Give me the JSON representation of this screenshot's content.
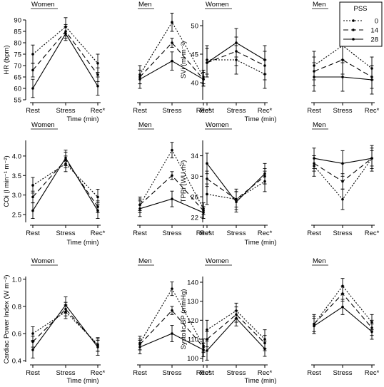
{
  "legend": {
    "title": "PSS",
    "entries": [
      "0",
      "14",
      "28"
    ]
  },
  "chart_data": [
    {
      "type": "line",
      "ylabel": "HR (bpm)",
      "xlabel": "Time (min)",
      "ylim": [
        55,
        90
      ],
      "yticks": [
        55,
        60,
        65,
        70,
        75,
        80,
        85,
        90
      ],
      "tick_labels": [
        "55",
        "60",
        "65",
        "70",
        "75",
        "80",
        "85",
        "90"
      ],
      "categories": [
        "Rest",
        "Stress",
        "Rec*"
      ],
      "group_labels": [
        "Women",
        "Men"
      ],
      "groups": [
        {
          "name": "Women",
          "series": [
            {
              "name": "0",
              "values": [
                75,
                87,
                71
              ],
              "errors": [
                4,
                4,
                4
              ]
            },
            {
              "name": "14",
              "values": [
                68,
                85,
                66
              ],
              "errors": [
                3,
                3,
                3
              ]
            },
            {
              "name": "28",
              "values": [
                60,
                84,
                61
              ],
              "errors": [
                4,
                3,
                4
              ]
            }
          ]
        },
        {
          "name": "Men",
          "series": [
            {
              "name": "0",
              "values": [
                66,
                89,
                65
              ],
              "errors": [
                4,
                4,
                3
              ]
            },
            {
              "name": "14",
              "values": [
                65,
                80,
                64
              ],
              "errors": [
                3,
                2,
                3
              ]
            },
            {
              "name": "28",
              "values": [
                64,
                72,
                64
              ],
              "errors": [
                4,
                4,
                3
              ]
            }
          ]
        }
      ]
    },
    {
      "type": "line",
      "ylabel": "SVi (ml m⁻²)",
      "xlabel": "Time (min)",
      "ylim": [
        37,
        51
      ],
      "yticks": [
        40,
        45,
        50
      ],
      "tick_labels": [
        "40",
        "45",
        "50"
      ],
      "categories": [
        "Rest",
        "Stress",
        "Rec*"
      ],
      "group_labels": [
        "Women",
        "Men"
      ],
      "groups": [
        {
          "name": "Women",
          "series": [
            {
              "name": "0",
              "values": [
                44,
                44,
                41.5
              ],
              "errors": [
                2.5,
                2.5,
                2.5
              ]
            },
            {
              "name": "14",
              "values": [
                43.5,
                45.5,
                43
              ],
              "errors": [
                2.5,
                2.5,
                2.5
              ]
            },
            {
              "name": "28",
              "values": [
                43.5,
                47,
                44
              ],
              "errors": [
                2.5,
                2.5,
                2.5
              ]
            }
          ]
        },
        {
          "name": "Men",
          "series": [
            {
              "name": "0",
              "values": [
                43,
                46.5,
                42.5
              ],
              "errors": [
                2.5,
                2.5,
                2
              ]
            },
            {
              "name": "14",
              "values": [
                42,
                44,
                41
              ],
              "errors": [
                2.5,
                2.5,
                2
              ]
            },
            {
              "name": "28",
              "values": [
                41,
                41,
                40.5
              ],
              "errors": [
                2.5,
                2.5,
                2.5
              ]
            }
          ]
        }
      ]
    },
    {
      "type": "line",
      "ylabel": "COi (l min⁻¹ m⁻²)",
      "xlabel": "Time (min)",
      "ylim": [
        2.3,
        4.4
      ],
      "yticks": [
        2.5,
        3.0,
        3.5,
        4.0
      ],
      "tick_labels": [
        "2.5",
        "3.0",
        "3.5",
        "4.0"
      ],
      "categories": [
        "Rest",
        "Stress",
        "Rec*"
      ],
      "group_labels": [
        "Women",
        "Men"
      ],
      "groups": [
        {
          "name": "Women",
          "series": [
            {
              "name": "0",
              "values": [
                3.25,
                3.8,
                2.95
              ],
              "errors": [
                0.2,
                0.2,
                0.2
              ]
            },
            {
              "name": "14",
              "values": [
                2.95,
                3.9,
                2.7
              ],
              "errors": [
                0.15,
                0.2,
                0.15
              ]
            },
            {
              "name": "28",
              "values": [
                2.6,
                3.95,
                2.6
              ],
              "errors": [
                0.2,
                0.2,
                0.2
              ]
            }
          ]
        },
        {
          "name": "Men",
          "series": [
            {
              "name": "0",
              "values": [
                2.75,
                4.15,
                2.65
              ],
              "errors": [
                0.2,
                0.2,
                0.15
              ]
            },
            {
              "name": "14",
              "values": [
                2.75,
                3.5,
                2.6
              ],
              "errors": [
                0.15,
                0.1,
                0.1
              ]
            },
            {
              "name": "28",
              "values": [
                2.65,
                2.9,
                2.55
              ],
              "errors": [
                0.2,
                0.2,
                0.15
              ]
            }
          ]
        }
      ]
    },
    {
      "type": "line",
      "ylabel": "TPRi (WU.m²)",
      "xlabel": "Time (min)",
      "ylim": [
        21,
        37
      ],
      "yticks": [
        22,
        26,
        30,
        34
      ],
      "tick_labels": [
        "22",
        "26",
        "30",
        "34"
      ],
      "categories": [
        "Rest",
        "Stress",
        "Rec*"
      ],
      "group_labels": [
        "Women",
        "Men"
      ],
      "groups": [
        {
          "name": "Women",
          "series": [
            {
              "name": "0",
              "values": [
                26.5,
                25.5,
                29
              ],
              "errors": [
                2,
                2,
                2
              ]
            },
            {
              "name": "14",
              "values": [
                29.5,
                25.5,
                30
              ],
              "errors": [
                1.5,
                1.5,
                1.5
              ]
            },
            {
              "name": "28",
              "values": [
                32.5,
                25,
                30.5
              ],
              "errors": [
                2,
                2,
                2
              ]
            }
          ]
        },
        {
          "name": "Men",
          "series": [
            {
              "name": "0",
              "values": [
                32,
                25.5,
                33.5
              ],
              "errors": [
                2,
                2,
                2
              ]
            },
            {
              "name": "14",
              "values": [
                32.5,
                29,
                33.5
              ],
              "errors": [
                1.5,
                1.5,
                1.5
              ]
            },
            {
              "name": "28",
              "values": [
                33.5,
                32.5,
                33.5
              ],
              "errors": [
                2,
                2.5,
                2.5
              ]
            }
          ]
        }
      ]
    },
    {
      "type": "line",
      "ylabel": "Cardiac Power Index (W m⁻²)",
      "xlabel": "Time (min)",
      "ylim": [
        0.39,
        1.02
      ],
      "yticks": [
        0.4,
        0.6,
        0.8,
        1.0
      ],
      "tick_labels": [
        "0.4",
        "0.6",
        "0.8",
        "1.0"
      ],
      "categories": [
        "Rest",
        "Stress",
        "Rec*"
      ],
      "group_labels": [
        "Women",
        "Men"
      ],
      "groups": [
        {
          "name": "Women",
          "series": [
            {
              "name": "0",
              "values": [
                0.6,
                0.76,
                0.52
              ],
              "errors": [
                0.05,
                0.05,
                0.05
              ]
            },
            {
              "name": "14",
              "values": [
                0.54,
                0.78,
                0.51
              ],
              "errors": [
                0.04,
                0.05,
                0.04
              ]
            },
            {
              "name": "28",
              "values": [
                0.48,
                0.81,
                0.5
              ],
              "errors": [
                0.06,
                0.06,
                0.06
              ]
            }
          ]
        },
        {
          "name": "Men",
          "series": [
            {
              "name": "0",
              "values": [
                0.53,
                0.93,
                0.51
              ],
              "errors": [
                0.05,
                0.05,
                0.05
              ]
            },
            {
              "name": "14",
              "values": [
                0.52,
                0.77,
                0.5
              ],
              "errors": [
                0.04,
                0.03,
                0.03
              ]
            },
            {
              "name": "28",
              "values": [
                0.5,
                0.6,
                0.48
              ],
              "errors": [
                0.05,
                0.06,
                0.05
              ]
            }
          ]
        }
      ]
    },
    {
      "type": "line",
      "ylabel": "Systolic BP (mmHg)",
      "xlabel": "Time (min)",
      "ylim": [
        98,
        143
      ],
      "yticks": [
        100,
        110,
        120,
        130,
        140
      ],
      "tick_labels": [
        "100",
        "110",
        "120",
        "130",
        "140"
      ],
      "categories": [
        "Rest",
        "Stress",
        "Rec*"
      ],
      "group_labels": [
        "Women",
        "Men"
      ],
      "groups": [
        {
          "name": "Women",
          "series": [
            {
              "name": "0",
              "values": [
                115,
                125,
                110
              ],
              "errors": [
                5,
                4,
                5
              ]
            },
            {
              "name": "14",
              "values": [
                110,
                123,
                108
              ],
              "errors": [
                4,
                4,
                4
              ]
            },
            {
              "name": "28",
              "values": [
                104,
                121,
                105
              ],
              "errors": [
                5,
                4,
                4
              ]
            }
          ]
        },
        {
          "name": "Men",
          "series": [
            {
              "name": "0",
              "values": [
                118,
                138,
                119
              ],
              "errors": [
                5,
                4,
                4
              ]
            },
            {
              "name": "14",
              "values": [
                118,
                134,
                116
              ],
              "errors": [
                4,
                4,
                4
              ]
            },
            {
              "name": "28",
              "values": [
                117,
                127,
                114
              ],
              "errors": [
                4,
                4,
                4
              ]
            }
          ]
        }
      ]
    }
  ]
}
